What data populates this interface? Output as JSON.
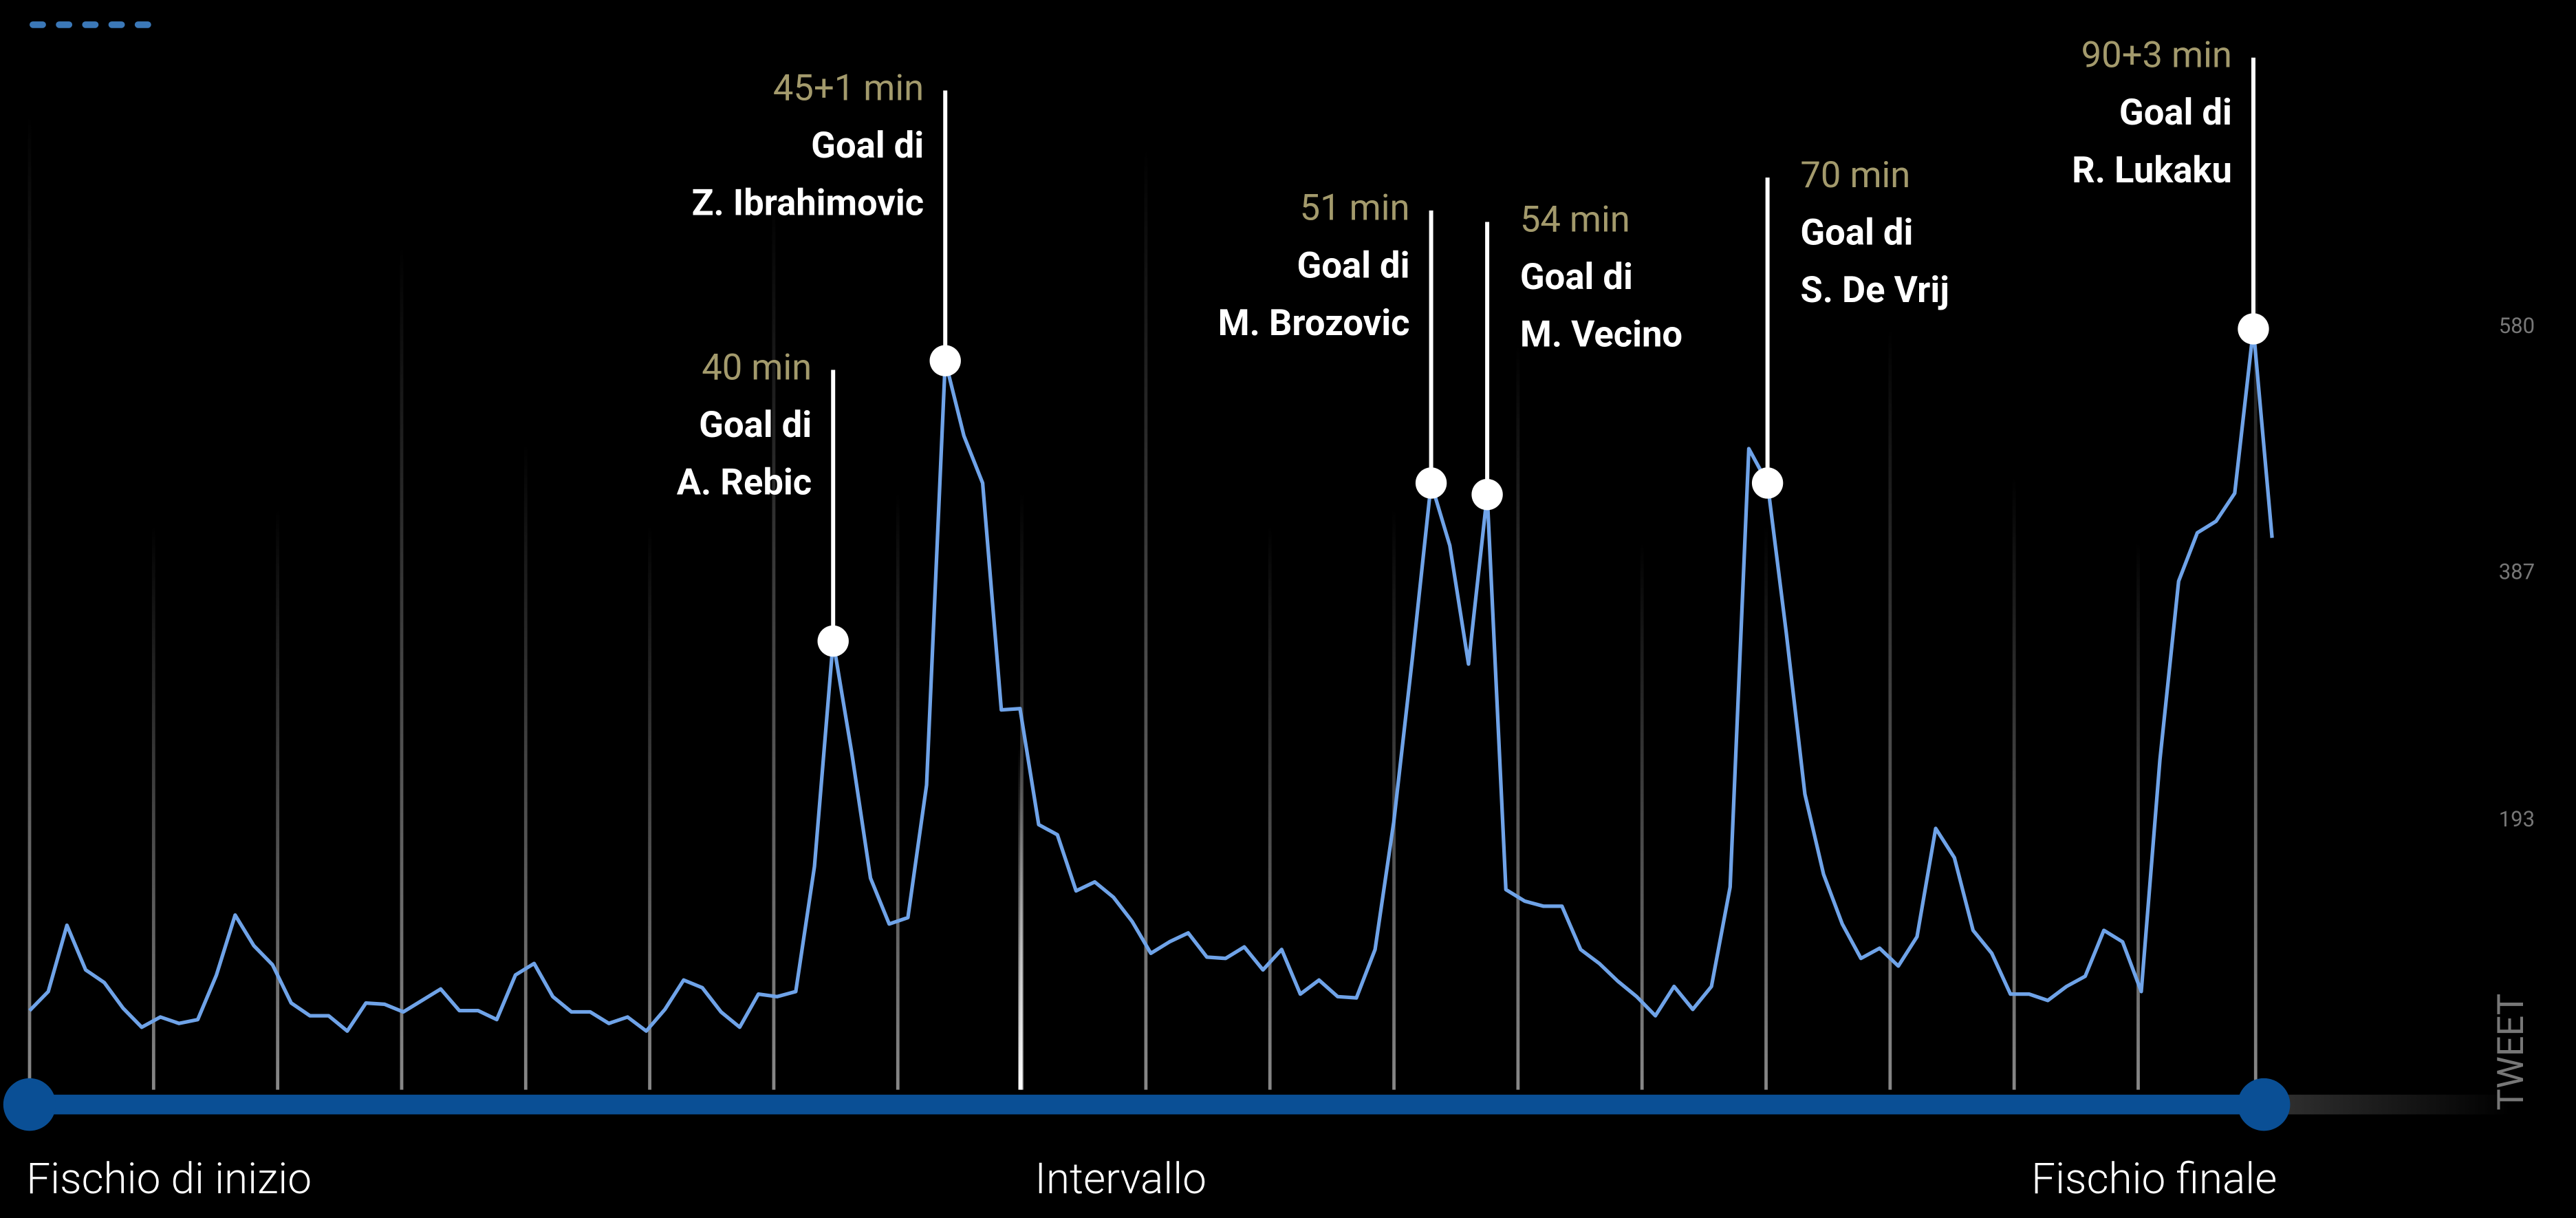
{
  "chart_data": {
    "type": "line",
    "x": [
      0,
      1,
      2,
      3,
      4,
      5,
      6,
      7,
      8,
      9,
      10,
      11,
      12,
      13,
      14,
      15,
      16,
      17,
      18,
      19,
      20,
      21,
      22,
      23,
      24,
      25,
      26,
      27,
      28,
      29,
      30,
      31,
      32,
      33,
      34,
      35,
      36,
      37,
      38,
      39,
      40,
      41,
      42,
      43,
      44,
      45,
      46,
      47,
      48,
      49,
      50,
      51,
      52,
      53,
      54,
      55,
      56,
      57,
      58,
      59,
      60,
      61,
      62,
      63,
      64,
      65,
      66,
      67,
      68,
      69,
      70,
      71,
      72,
      73,
      74,
      75,
      76,
      77,
      78,
      79,
      80,
      81,
      82,
      83,
      84,
      85,
      86,
      87,
      88,
      89,
      90,
      91,
      92,
      93,
      94,
      95,
      96,
      97,
      98,
      99,
      100,
      101,
      102,
      103,
      104,
      105,
      106,
      107,
      108,
      109,
      110,
      111,
      112,
      113,
      114,
      115,
      116,
      117,
      118,
      119,
      120
    ],
    "series": [
      {
        "color": "#6fa3e8",
        "values": [
          44,
          59,
          111,
          76,
          66,
          46,
          31,
          39,
          34,
          37,
          72,
          119,
          95,
          80,
          50,
          40,
          40,
          28,
          50,
          49,
          43,
          52,
          61,
          44,
          44,
          37,
          72,
          81,
          55,
          43,
          43,
          34,
          39,
          28,
          45,
          68,
          62,
          43,
          31,
          57,
          55,
          59,
          157,
          334,
          246,
          148,
          112,
          117,
          221,
          554,
          495,
          458,
          280,
          281,
          190,
          182,
          138,
          145,
          133,
          114,
          89,
          98,
          105,
          86,
          85,
          94,
          76,
          92,
          57,
          68,
          55,
          54,
          92,
          192,
          321,
          458,
          409,
          316,
          449,
          139,
          130,
          126,
          126,
          92,
          81,
          67,
          55,
          40,
          63,
          45,
          63,
          141,
          485,
          458,
          341,
          214,
          151,
          112,
          85,
          93,
          79,
          102,
          187,
          164,
          107,
          89,
          57,
          57,
          52,
          63,
          71,
          107,
          98,
          59,
          241,
          381,
          419,
          428,
          450,
          579,
          415
        ]
      }
    ],
    "xlim": [
      0,
      120
    ],
    "xticks": [
      {
        "value": 0,
        "label": "Fischio di inizio"
      },
      {
        "value": 53,
        "label": "Intervallo"
      },
      {
        "value": 120,
        "label": "Fischio finale"
      }
    ],
    "ylim": [
      0,
      837
    ],
    "yticks": [
      193,
      387,
      580
    ],
    "ylabel": "TWEET",
    "annotations": [
      {
        "x": 43,
        "time": "40 min",
        "text": "Goal di",
        "player": "A. Rebic"
      },
      {
        "x": 49,
        "time": "45+1 min",
        "text": "Goal di",
        "player": "Z. Ibrahimovic"
      },
      {
        "x": 75,
        "time": "51 min",
        "text": "Goal di",
        "player": "M. Brozovic"
      },
      {
        "x": 78,
        "time": "54 min",
        "text": "Goal di",
        "player": "M. Vecino"
      },
      {
        "x": 93,
        "time": "70 min",
        "text": "Goal di",
        "player": "S. De Vrij"
      },
      {
        "x": 119,
        "time": "90+3 min",
        "text": "Goal di",
        "player": "R. Lukaku"
      }
    ]
  }
}
